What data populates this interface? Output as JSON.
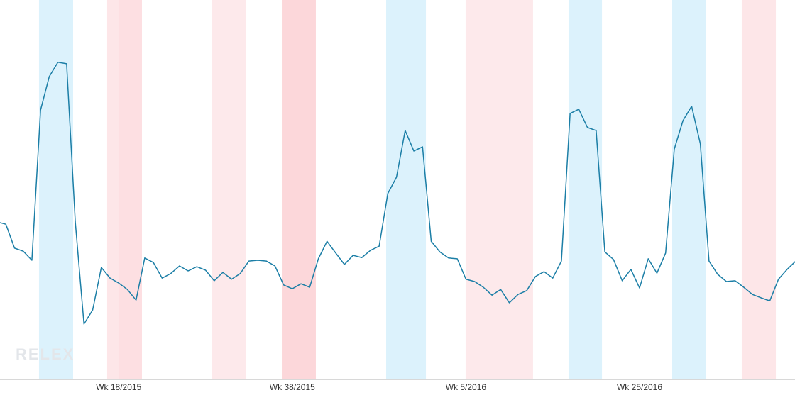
{
  "chart_data": {
    "type": "line",
    "logo": "RELEX",
    "categories": [
      null,
      null,
      null,
      null,
      null,
      null,
      null,
      null,
      null,
      null,
      null,
      null,
      null,
      null,
      "Wk 18/2015",
      null,
      null,
      null,
      null,
      null,
      null,
      null,
      null,
      null,
      null,
      null,
      null,
      null,
      null,
      null,
      null,
      null,
      null,
      null,
      "Wk 38/2015",
      null,
      null,
      null,
      null,
      null,
      null,
      null,
      null,
      null,
      null,
      null,
      null,
      null,
      null,
      null,
      null,
      null,
      null,
      null,
      "Wk 5/2016",
      null,
      null,
      null,
      null,
      null,
      null,
      null,
      null,
      null,
      null,
      null,
      null,
      null,
      null,
      null,
      null,
      null,
      null,
      null,
      "Wk 25/2016",
      null,
      null,
      null,
      null,
      null,
      null,
      null,
      null,
      null,
      null,
      null,
      null,
      null,
      null,
      null,
      null,
      null,
      null
    ],
    "series": [
      {
        "color": "#1b7ea6",
        "values": [
          41.5,
          40.9,
          34.6,
          33.8,
          31.4,
          71.0,
          79.8,
          83.6,
          83.2,
          41.5,
          14.6,
          18.3,
          29.5,
          26.7,
          25.4,
          23.7,
          20.9,
          32.0,
          30.8,
          26.7,
          27.9,
          29.9,
          28.6,
          29.7,
          28.8,
          26.0,
          28.2,
          26.4,
          27.9,
          31.2,
          31.4,
          31.2,
          29.9,
          24.9,
          23.9,
          25.2,
          24.3,
          31.8,
          36.4,
          33.3,
          30.3,
          32.7,
          32.1,
          34.0,
          35.1,
          49.0,
          53.3,
          65.6,
          60.2,
          61.3,
          36.4,
          33.6,
          32.0,
          31.8,
          26.4,
          25.8,
          24.3,
          22.2,
          23.7,
          20.2,
          22.4,
          23.4,
          27.1,
          28.4,
          26.7,
          31.2,
          70.1,
          71.2,
          66.4,
          65.6,
          33.6,
          31.6,
          26.0,
          29.0,
          24.1,
          31.8,
          28.0,
          33.3,
          60.7,
          68.2,
          72.0,
          62.1,
          31.2,
          27.7,
          25.8,
          26.0,
          24.3,
          22.4,
          21.5,
          20.7,
          26.4,
          29.0,
          31.2
        ]
      }
    ],
    "bands": [
      {
        "from": 4.82,
        "to": 8.75,
        "color": "#dcf2fc"
      },
      {
        "from": 12.67,
        "to": 14.0,
        "color": "#fde6e8"
      },
      {
        "from": 14.0,
        "to": 16.68,
        "color": "#fddfe2"
      },
      {
        "from": 24.77,
        "to": 28.7,
        "color": "#fde9eb"
      },
      {
        "from": 32.79,
        "to": 36.71,
        "color": "#fcd7da"
      },
      {
        "from": 44.81,
        "to": 49.39,
        "color": "#dcf2fc"
      },
      {
        "from": 53.96,
        "to": 61.73,
        "color": "#fde9eb"
      },
      {
        "from": 65.82,
        "to": 69.67,
        "color": "#dcf2fc"
      },
      {
        "from": 77.76,
        "to": 81.68,
        "color": "#dcf2fc"
      },
      {
        "from": 85.77,
        "to": 89.7,
        "color": "#fde6e8"
      }
    ],
    "ylim": [
      0,
      100
    ]
  }
}
